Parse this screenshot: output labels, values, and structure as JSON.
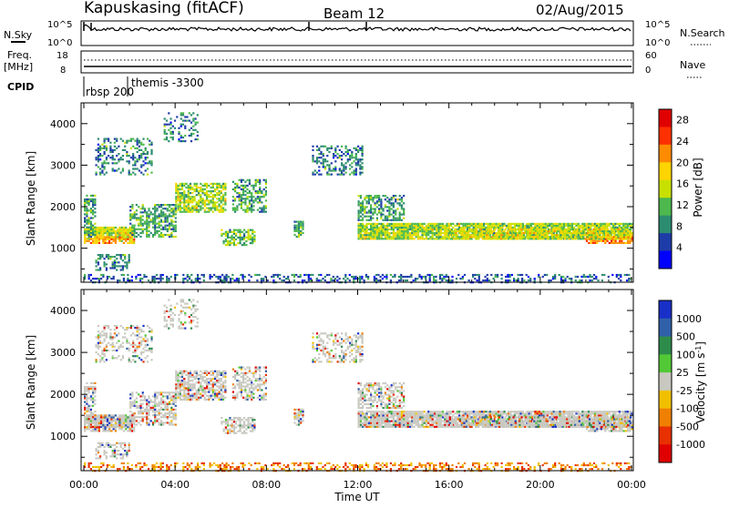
{
  "header": {
    "station": "Kapuskasing (fitACF)",
    "beam": "Beam 12",
    "date": "02/Aug/2015"
  },
  "top_panels": {
    "nsky_label": "N.Sky",
    "nsky_ticks": [
      "10^5",
      "10^0"
    ],
    "nsearch_label": "N.Search",
    "nsearch_ticks": [
      "10^5",
      "10^0"
    ],
    "freq_label_1": "Freq.",
    "freq_label_2": "[MHz]",
    "freq_ticks": [
      "18",
      "8"
    ],
    "nave_label": "Nave",
    "nave_ticks": [
      "60",
      "0"
    ],
    "cpid_label": "CPID",
    "cpid_entries": [
      "rbsp 200",
      "themis -3300"
    ]
  },
  "chart_data": [
    {
      "type": "heatmap",
      "name": "power-panel",
      "xlabel": "Time UT",
      "ylabel": "Slant Range [km]",
      "x_ticks": [
        "00:00",
        "04:00",
        "08:00",
        "12:00",
        "16:00",
        "20:00",
        "00:00"
      ],
      "xlim_hours": [
        0,
        24
      ],
      "y_ticks": [
        1000,
        2000,
        3000,
        4000
      ],
      "ylim": [
        180,
        4500
      ],
      "colorbar_label": "Power [dB]",
      "colorbar_ticks": [
        4,
        8,
        12,
        16,
        20,
        24,
        28
      ],
      "colorbar_range": [
        0,
        30
      ],
      "colors": [
        "#0000ff",
        "#1e3ca8",
        "#2c8c70",
        "#4db84d",
        "#c8e000",
        "#ffd400",
        "#ff8c00",
        "#ff3000",
        "#e00000"
      ]
    },
    {
      "type": "heatmap",
      "name": "velocity-panel",
      "xlabel": "Time UT",
      "ylabel": "Slant Range [km]",
      "x_ticks": [
        "00:00",
        "04:00",
        "08:00",
        "12:00",
        "16:00",
        "20:00",
        "00:00"
      ],
      "xlim_hours": [
        0,
        24
      ],
      "y_ticks": [
        1000,
        2000,
        3000,
        4000
      ],
      "ylim": [
        180,
        4500
      ],
      "colorbar_label": "Velocity [m s-1]",
      "colorbar_ticks": [
        "1000",
        "500",
        "100",
        "25",
        "-25",
        "-100",
        "-500",
        "-1000"
      ],
      "colors": [
        "#1830c8",
        "#3060a8",
        "#2e8c4a",
        "#52c836",
        "#c8c8c0",
        "#f0c000",
        "#f08000",
        "#e83000",
        "#e00000"
      ]
    }
  ]
}
